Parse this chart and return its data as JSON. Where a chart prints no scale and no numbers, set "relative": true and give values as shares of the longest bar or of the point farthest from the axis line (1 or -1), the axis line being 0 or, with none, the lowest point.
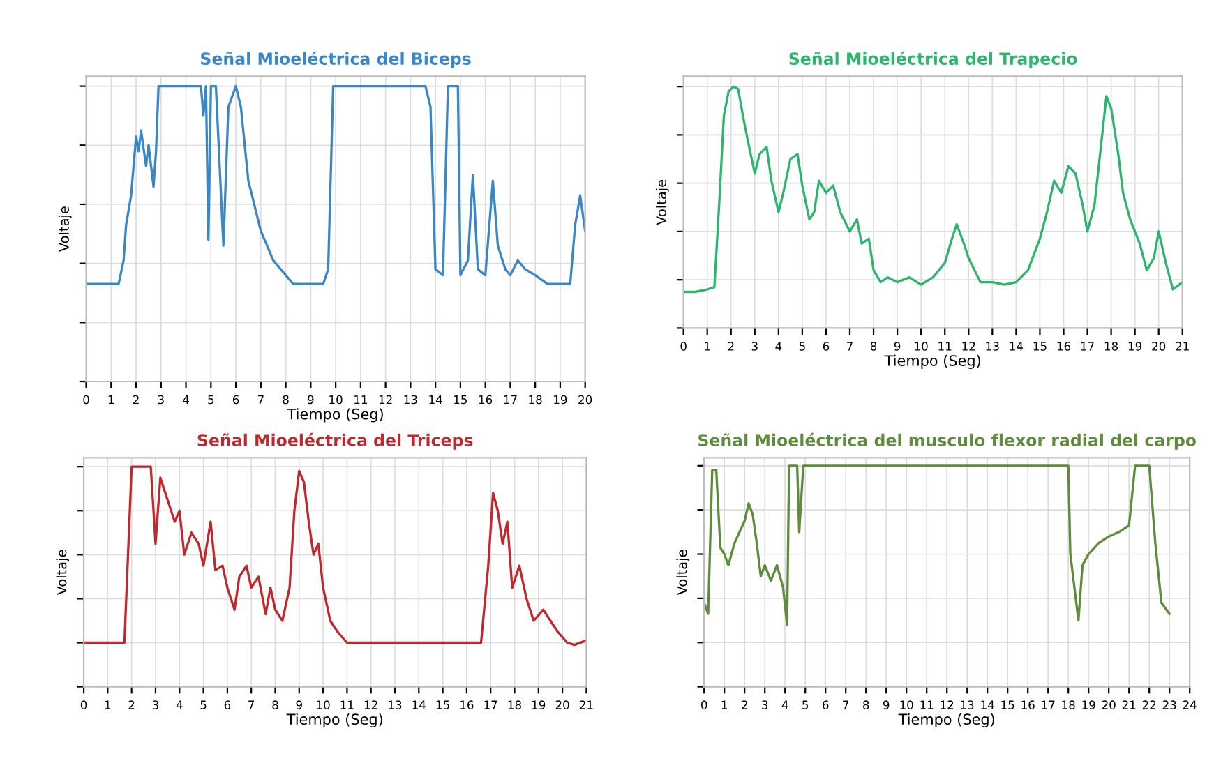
{
  "chart_data": [
    {
      "type": "line",
      "title": "Señal Mioeléctrica del Biceps",
      "xlabel": "Tiempo (Seg)",
      "ylabel": "Voltaje",
      "relative": true,
      "tick_labels": "x",
      "grid": true,
      "xlim": [
        0,
        20
      ],
      "xticks": [
        0,
        1,
        2,
        3,
        4,
        5,
        6,
        7,
        8,
        9,
        10,
        11,
        12,
        13,
        14,
        15,
        16,
        17,
        18,
        19,
        20
      ],
      "series": [
        {
          "color": "#3a87c8",
          "x": [
            0,
            1.3,
            1.5,
            1.6,
            1.8,
            2.0,
            2.1,
            2.2,
            2.4,
            2.5,
            2.7,
            2.8,
            2.9,
            4.6,
            4.7,
            4.8,
            4.9,
            5.0,
            5.2,
            5.5,
            5.7,
            6.0,
            6.2,
            6.5,
            7.0,
            7.5,
            8.0,
            8.3,
            9.5,
            9.7,
            9.9,
            13.6,
            13.8,
            14.0,
            14.3,
            14.5,
            14.9,
            15.0,
            15.3,
            15.5,
            15.7,
            16.0,
            16.3,
            16.5,
            16.8,
            17.0,
            17.3,
            17.6,
            18.0,
            18.5,
            19.4,
            19.6,
            19.8,
            20
          ],
          "values": [
            0.33,
            0.33,
            0.41,
            0.53,
            0.63,
            0.83,
            0.78,
            0.85,
            0.73,
            0.8,
            0.66,
            0.78,
            1,
            1,
            0.9,
            1,
            0.48,
            1,
            1,
            0.46,
            0.93,
            1,
            0.93,
            0.68,
            0.51,
            0.41,
            0.36,
            0.33,
            0.33,
            0.38,
            1,
            1,
            0.93,
            0.38,
            0.36,
            1,
            1,
            0.36,
            0.41,
            0.7,
            0.38,
            0.36,
            0.68,
            0.46,
            0.38,
            0.36,
            0.41,
            0.38,
            0.36,
            0.33,
            0.33,
            0.53,
            0.63,
            0.51
          ]
        }
      ]
    },
    {
      "type": "line",
      "title": "Señal Mioeléctrica del Trapecio",
      "xlabel": "Tiempo (Seg)",
      "ylabel": "Voltaje",
      "relative": true,
      "tick_labels": "x",
      "grid": true,
      "xlim": [
        0,
        21
      ],
      "xticks": [
        0,
        1,
        2,
        3,
        4,
        5,
        6,
        7,
        8,
        9,
        10,
        11,
        12,
        13,
        14,
        15,
        16,
        17,
        18,
        19,
        20,
        21
      ],
      "series": [
        {
          "color": "#2db56e",
          "x": [
            0,
            0.5,
            1.0,
            1.3,
            1.5,
            1.7,
            1.9,
            2.1,
            2.3,
            2.5,
            2.7,
            3.0,
            3.2,
            3.5,
            3.7,
            4.0,
            4.2,
            4.5,
            4.8,
            5.0,
            5.3,
            5.5,
            5.7,
            6.0,
            6.3,
            6.6,
            7.0,
            7.3,
            7.5,
            7.8,
            8.0,
            8.3,
            8.6,
            9.0,
            9.5,
            10,
            10.5,
            11,
            11.3,
            11.5,
            11.8,
            12,
            12.5,
            13,
            13.5,
            14,
            14.5,
            15,
            15.3,
            15.6,
            15.9,
            16.2,
            16.5,
            16.8,
            17,
            17.3,
            17.6,
            17.8,
            18,
            18.3,
            18.5,
            18.8,
            19.2,
            19.5,
            19.8,
            20,
            20.3,
            20.6,
            21
          ],
          "values": [
            0.15,
            0.15,
            0.16,
            0.17,
            0.51,
            0.88,
            0.98,
            1,
            0.99,
            0.88,
            0.78,
            0.64,
            0.72,
            0.75,
            0.61,
            0.48,
            0.56,
            0.7,
            0.72,
            0.59,
            0.45,
            0.48,
            0.61,
            0.56,
            0.59,
            0.48,
            0.4,
            0.45,
            0.35,
            0.37,
            0.24,
            0.19,
            0.21,
            0.19,
            0.21,
            0.18,
            0.21,
            0.27,
            0.37,
            0.43,
            0.35,
            0.29,
            0.19,
            0.19,
            0.18,
            0.19,
            0.24,
            0.37,
            0.48,
            0.61,
            0.56,
            0.67,
            0.64,
            0.51,
            0.4,
            0.51,
            0.78,
            0.96,
            0.91,
            0.72,
            0.56,
            0.45,
            0.35,
            0.24,
            0.29,
            0.4,
            0.27,
            0.16,
            0.19
          ]
        }
      ]
    },
    {
      "type": "line",
      "title": "Señal Mioeléctrica del Triceps",
      "xlabel": "Tiempo (Seg)",
      "ylabel": "Voltaje",
      "relative": true,
      "tick_labels": "x",
      "grid": true,
      "xlim": [
        0,
        21
      ],
      "xticks": [
        0,
        1,
        2,
        3,
        4,
        5,
        6,
        7,
        8,
        9,
        10,
        11,
        12,
        13,
        14,
        15,
        16,
        17,
        18,
        19,
        20,
        21
      ],
      "series": [
        {
          "color": "#c0282d",
          "x": [
            0,
            1.7,
            2.0,
            2.8,
            3.0,
            3.2,
            3.5,
            3.8,
            4.0,
            4.2,
            4.5,
            4.8,
            5.0,
            5.3,
            5.5,
            5.8,
            6.0,
            6.3,
            6.5,
            6.8,
            7.0,
            7.3,
            7.6,
            7.8,
            8.0,
            8.3,
            8.6,
            8.8,
            9.0,
            9.2,
            9.4,
            9.6,
            9.8,
            10,
            10.3,
            10.6,
            11,
            16.6,
            16.9,
            17.1,
            17.3,
            17.5,
            17.7,
            17.9,
            18.2,
            18.5,
            18.8,
            19.2,
            19.5,
            19.8,
            20.2,
            20.5,
            21
          ],
          "values": [
            0.2,
            0.2,
            1,
            1,
            0.65,
            0.95,
            0.85,
            0.75,
            0.8,
            0.6,
            0.7,
            0.65,
            0.55,
            0.75,
            0.53,
            0.55,
            0.45,
            0.35,
            0.5,
            0.55,
            0.45,
            0.5,
            0.33,
            0.45,
            0.35,
            0.3,
            0.45,
            0.8,
            0.98,
            0.93,
            0.75,
            0.6,
            0.65,
            0.45,
            0.3,
            0.25,
            0.2,
            0.2,
            0.55,
            0.88,
            0.8,
            0.65,
            0.75,
            0.45,
            0.55,
            0.4,
            0.3,
            0.35,
            0.3,
            0.25,
            0.2,
            0.19,
            0.21
          ]
        }
      ]
    },
    {
      "type": "line",
      "title": "Señal Mioeléctrica del musculo flexor radial del carpo",
      "xlabel": "Tiempo (Seg)",
      "ylabel": "Voltaje",
      "relative": true,
      "tick_labels": "x",
      "grid": true,
      "xlim": [
        0,
        24
      ],
      "xticks": [
        0,
        1,
        2,
        3,
        4,
        5,
        6,
        7,
        8,
        9,
        10,
        11,
        12,
        13,
        14,
        15,
        16,
        17,
        18,
        19,
        20,
        21,
        22,
        23,
        24
      ],
      "series": [
        {
          "color": "#5e8c3a",
          "x": [
            0,
            0.2,
            0.4,
            0.6,
            0.8,
            1.0,
            1.2,
            1.5,
            2.0,
            2.2,
            2.4,
            2.6,
            2.8,
            3.0,
            3.3,
            3.6,
            3.9,
            4.1,
            4.2,
            4.6,
            4.7,
            4.9,
            18,
            18.1,
            18.3,
            18.5,
            18.7,
            19,
            19.5,
            20,
            20.5,
            21,
            21.3,
            22,
            22.3,
            22.6,
            23
          ],
          "values": [
            0.38,
            0.33,
            0.98,
            0.98,
            0.63,
            0.6,
            0.55,
            0.65,
            0.75,
            0.83,
            0.78,
            0.65,
            0.5,
            0.55,
            0.48,
            0.55,
            0.45,
            0.28,
            1,
            1,
            0.7,
            1,
            1,
            0.6,
            0.45,
            0.3,
            0.55,
            0.6,
            0.65,
            0.68,
            0.7,
            0.73,
            1,
            1,
            0.65,
            0.38,
            0.33
          ]
        }
      ]
    }
  ]
}
